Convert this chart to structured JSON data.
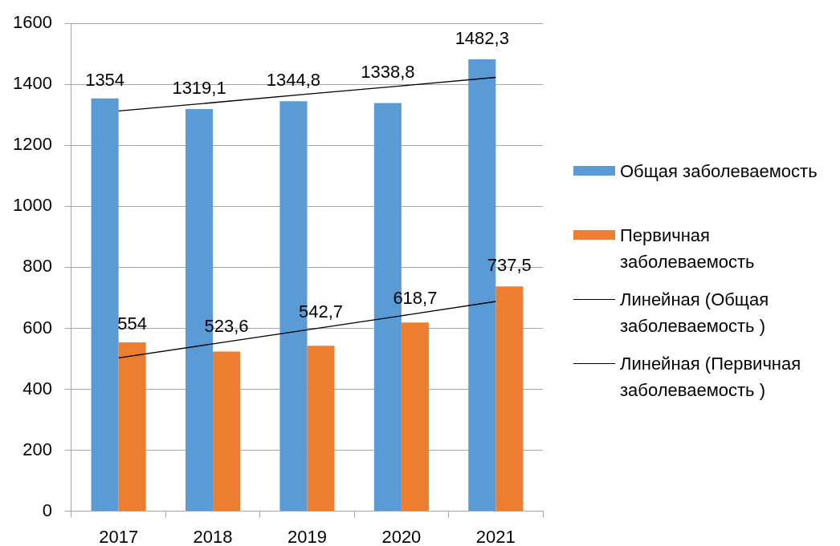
{
  "chart_data": {
    "type": "bar",
    "categories": [
      "2017",
      "2018",
      "2019",
      "2020",
      "2021"
    ],
    "series": [
      {
        "name": "Общая заболеваемость",
        "color": "#5b9bd5",
        "values": [
          1354,
          1319.1,
          1344.8,
          1338.8,
          1482.3
        ],
        "value_labels": [
          "1354",
          "1319,1",
          "1344,8",
          "1338,8",
          "1482,3"
        ]
      },
      {
        "name": "Первичная заболеваемость",
        "color": "#ed7d31",
        "values": [
          554,
          523.6,
          542.7,
          618.7,
          737.5
        ],
        "value_labels": [
          "554",
          "523,6",
          "542,7",
          "618,7",
          "737,5"
        ]
      },
      {
        "name": "Линейная (Общая заболеваемость )",
        "type": "line",
        "color": "#000000",
        "values": [
          1313,
          1340,
          1368,
          1395,
          1423
        ]
      },
      {
        "name": "Линейная (Первичная заболеваемость )",
        "type": "line",
        "color": "#000000",
        "values": [
          503,
          549,
          595,
          641,
          688
        ]
      }
    ],
    "ylim": [
      0,
      1600
    ],
    "yticks": [
      0,
      200,
      400,
      600,
      800,
      1000,
      1200,
      1400,
      1600
    ],
    "grid": "y",
    "legend": "right"
  }
}
